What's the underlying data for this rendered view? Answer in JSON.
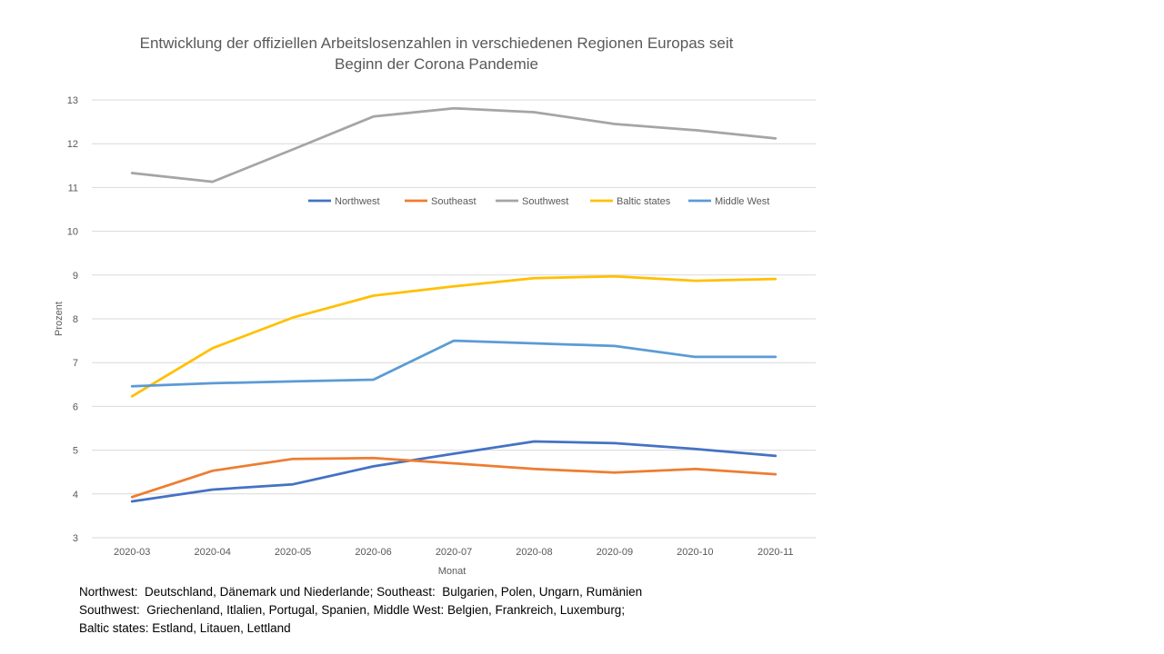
{
  "chart_data": {
    "type": "line",
    "title_lines": [
      "Entwicklung der offiziellen Arbeitslosenzahlen in verschiedenen Regionen Europas seit",
      "Beginn der Corona Pandemie"
    ],
    "xlabel": "Monat",
    "ylabel": "Prozent",
    "ylim": [
      3,
      13
    ],
    "yticks": [
      "3",
      "4",
      "5",
      "6",
      "7",
      "8",
      "9",
      "10",
      "11",
      "12",
      "13"
    ],
    "categories": [
      "2020-03",
      "2020-04",
      "2020-05",
      "2020-06",
      "2020-07",
      "2020-08",
      "2020-09",
      "2020-10",
      "2020-11"
    ],
    "grid": true,
    "legend_position": "inside-top",
    "series": [
      {
        "name": "Northwest",
        "color": "#4472C4",
        "values": [
          3.83,
          4.1,
          4.22,
          4.63,
          4.92,
          5.2,
          5.16,
          5.03,
          4.87
        ]
      },
      {
        "name": "Southeast",
        "color": "#ED7D31",
        "values": [
          3.93,
          4.53,
          4.8,
          4.82,
          4.7,
          4.57,
          4.49,
          4.57,
          4.45
        ]
      },
      {
        "name": "Southwest",
        "color": "#A5A5A5",
        "values": [
          11.33,
          11.13,
          11.87,
          12.62,
          12.81,
          12.72,
          12.45,
          12.31,
          12.12
        ]
      },
      {
        "name": "Baltic states",
        "color": "#FFC000",
        "values": [
          6.23,
          7.33,
          8.03,
          8.53,
          8.74,
          8.93,
          8.97,
          8.87,
          8.91
        ]
      },
      {
        "name": "Middle West",
        "color": "#5B9BD5",
        "values": [
          6.46,
          6.53,
          6.57,
          6.61,
          7.5,
          7.44,
          7.38,
          7.13,
          7.13
        ]
      }
    ]
  },
  "footnote": {
    "line1": "Northwest:  Deutschland, Dänemark und Niederlande; Southeast:  Bulgarien, Polen, Ungarn, Rumänien",
    "line2": "Southwest:  Griechenland, Itlalien, Portugal, Spanien, Middle West: Belgien, Frankreich, Luxemburg;",
    "line3": "Baltic states: Estland, Litauen, Lettland"
  }
}
